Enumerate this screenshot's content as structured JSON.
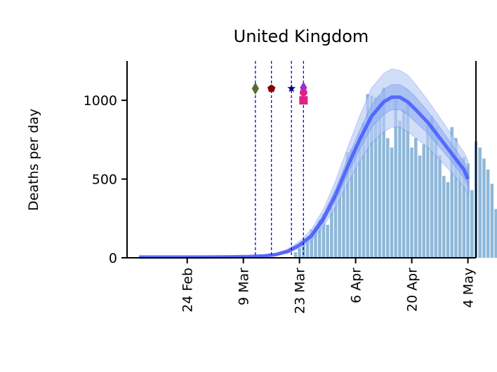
{
  "chart_data": {
    "type": "bar",
    "title": "United Kingdom",
    "xlabel": "",
    "ylabel": "Deaths per day",
    "ylim": [
      0,
      1250
    ],
    "xlim": [
      "2020-02-09",
      "2020-05-06"
    ],
    "y_ticks": [
      {
        "value": 0,
        "label": "0"
      },
      {
        "value": 500,
        "label": "500"
      },
      {
        "value": 1000,
        "label": "1000"
      }
    ],
    "x_ticks": [
      {
        "date": "2020-02-24",
        "label": "24 Feb"
      },
      {
        "date": "2020-03-09",
        "label": "9 Mar"
      },
      {
        "date": "2020-03-23",
        "label": "23 Mar"
      },
      {
        "date": "2020-04-06",
        "label": "6 Apr"
      },
      {
        "date": "2020-04-20",
        "label": "20 Apr"
      },
      {
        "date": "2020-05-04",
        "label": "4 May"
      }
    ],
    "grid": false,
    "colors": {
      "bars": "#8fb8d9",
      "model_line": "#3a4dff",
      "outer_band": "#b8cdf5",
      "inner_band": "#8aaaf0",
      "intervention_lines": "#0000ee"
    },
    "observed_deaths": {
      "start_date": "2020-03-22",
      "values": [
        35,
        60,
        90,
        120,
        180,
        200,
        240,
        280,
        210,
        320,
        390,
        450,
        520,
        670,
        690,
        720,
        790,
        860,
        1040,
        1030,
        1020,
        1030,
        1080,
        760,
        700,
        1000,
        870,
        940,
        980,
        700,
        760,
        650,
        720,
        840,
        900,
        830,
        650,
        520,
        480,
        830,
        760,
        630,
        640,
        600,
        430,
        740,
        700,
        630,
        560,
        470,
        310
      ]
    },
    "model": {
      "dates": [
        "2020-02-12",
        "2020-02-20",
        "2020-02-28",
        "2020-03-05",
        "2020-03-10",
        "2020-03-14",
        "2020-03-17",
        "2020-03-20",
        "2020-03-23",
        "2020-03-26",
        "2020-03-29",
        "2020-04-01",
        "2020-04-04",
        "2020-04-07",
        "2020-04-10",
        "2020-04-13",
        "2020-04-15",
        "2020-04-17",
        "2020-04-19",
        "2020-04-21",
        "2020-04-24",
        "2020-04-27",
        "2020-04-30",
        "2020-05-03",
        "2020-05-04"
      ],
      "mean": [
        5,
        5,
        5,
        6,
        8,
        12,
        20,
        40,
        80,
        140,
        250,
        400,
        580,
        750,
        900,
        990,
        1020,
        1020,
        990,
        940,
        860,
        760,
        660,
        560,
        500
      ],
      "inner_low": [
        4,
        4,
        4,
        5,
        7,
        10,
        17,
        34,
        70,
        125,
        225,
        365,
        530,
        690,
        830,
        910,
        940,
        940,
        910,
        860,
        790,
        700,
        610,
        510,
        460
      ],
      "inner_high": [
        6,
        6,
        6,
        7,
        9,
        14,
        24,
        47,
        92,
        158,
        278,
        440,
        630,
        810,
        970,
        1070,
        1100,
        1100,
        1070,
        1020,
        930,
        830,
        720,
        610,
        550
      ],
      "outer_low": [
        3,
        3,
        3,
        4,
        5,
        8,
        14,
        29,
        60,
        110,
        200,
        320,
        470,
        610,
        730,
        800,
        830,
        830,
        800,
        760,
        700,
        620,
        540,
        450,
        400
      ],
      "outer_high": [
        7,
        7,
        7,
        8,
        11,
        17,
        29,
        55,
        105,
        180,
        310,
        490,
        700,
        900,
        1080,
        1170,
        1200,
        1190,
        1160,
        1100,
        1000,
        890,
        780,
        670,
        620
      ]
    },
    "interventions": [
      {
        "date": "2020-03-12",
        "marker": "diamond",
        "color": "#556b2f"
      },
      {
        "date": "2020-03-16",
        "marker": "pentagon",
        "color": "#8b0000"
      },
      {
        "date": "2020-03-21",
        "marker": "star",
        "color": "#000080"
      },
      {
        "date": "2020-03-24",
        "markers": [
          {
            "marker": "diamond",
            "color": "#9932cc",
            "value": 1080
          },
          {
            "marker": "circle",
            "color": "#dd2288",
            "value": 1050
          },
          {
            "marker": "square",
            "color": "#dd2288",
            "value": 1000
          }
        ]
      }
    ],
    "marker_value": 1075
  }
}
